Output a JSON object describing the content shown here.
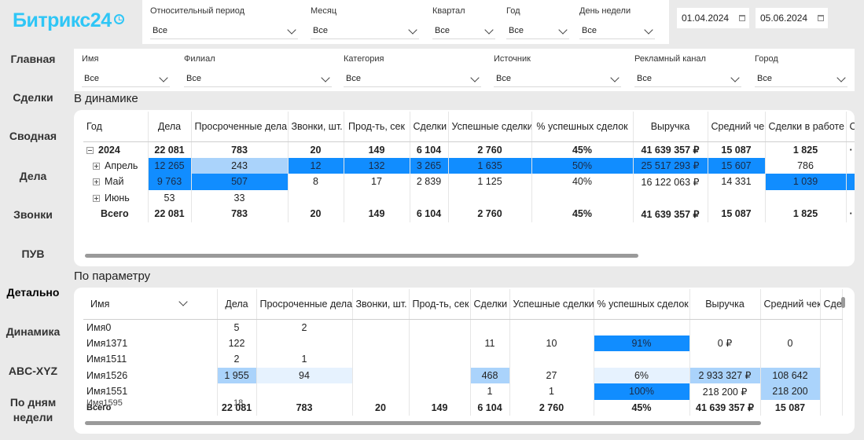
{
  "brand": "Битрикс24",
  "nav": [
    "Главная",
    "Сделки",
    "Сводная",
    "Дела",
    "Звонки",
    "ПУВ",
    "Детально",
    "Динамика",
    "ABC-XYZ",
    "По дням недели"
  ],
  "nav_active_index": 6,
  "top_filters": [
    {
      "label": "Относительный период",
      "value": "Все"
    },
    {
      "label": "Месяц",
      "value": "Все"
    },
    {
      "label": "Квартал",
      "value": "Все"
    },
    {
      "label": "Год",
      "value": "Все"
    },
    {
      "label": "День недели",
      "value": "Все"
    }
  ],
  "dates": {
    "from": "01.04.2024",
    "to": "05.06.2024"
  },
  "sub_filters": [
    {
      "label": "Имя",
      "value": "Все"
    },
    {
      "label": "Филиал",
      "value": "Все"
    },
    {
      "label": "Категория",
      "value": "Все"
    },
    {
      "label": "Источник",
      "value": "Все"
    },
    {
      "label": "Рекламный канал",
      "value": "Все"
    },
    {
      "label": "Город",
      "value": "Все"
    }
  ],
  "dynamics": {
    "title": "В динамике",
    "headers": [
      "Год",
      "Дела",
      "Просроченные дела",
      "Звонки, шт.",
      "Прод-ть, сек",
      "Сделки",
      "Успешные сделки",
      "% успешных сделок",
      "Выручка",
      "Средний чек",
      "Сделки в работе",
      "С"
    ],
    "rows": [
      {
        "label": "2024",
        "level": 0,
        "expanded": true,
        "bold": true,
        "cells": [
          "22 081",
          "783",
          "20",
          "149",
          "6 104",
          "2 760",
          "45%",
          "41 639 357 ₽",
          "15 087",
          "1 825",
          "·"
        ]
      },
      {
        "label": "Апрель",
        "level": 1,
        "expanded": false,
        "bold": false,
        "cells": [
          "12 265",
          "243",
          "12",
          "132",
          "3 265",
          "1 635",
          "50%",
          "25 517 293 ₽",
          "15 607",
          "786",
          ""
        ]
      },
      {
        "label": "Май",
        "level": 1,
        "expanded": false,
        "bold": false,
        "cells": [
          "9 763",
          "507",
          "8",
          "17",
          "2 839",
          "1 125",
          "40%",
          "16 122 063 ₽",
          "14 331",
          "1 039",
          ""
        ]
      },
      {
        "label": "Июнь",
        "level": 1,
        "expanded": false,
        "bold": false,
        "cells": [
          "53",
          "33",
          "",
          "",
          "",
          "",
          "",
          "",
          "",
          "",
          ""
        ]
      }
    ],
    "total": {
      "label": "Всего",
      "cells": [
        "22 081",
        "783",
        "20",
        "149",
        "6 104",
        "2 760",
        "45%",
        "41 639 357 ₽",
        "15 087",
        "1 825",
        "·"
      ]
    }
  },
  "params": {
    "title": "По параметру",
    "selector": "Имя",
    "headers": [
      "Дела",
      "Просроченные дела",
      "Звонки, шт.",
      "Прод-ть, сек",
      "Сделки",
      "Успешные сделки",
      "% успешных сделок",
      "Выручка",
      "Средний чек",
      "Сде"
    ],
    "rows": [
      {
        "label": "Имя0",
        "cells": [
          "5",
          "2",
          "",
          "",
          "",
          "",
          "",
          "",
          "",
          ""
        ]
      },
      {
        "label": "Имя1371",
        "cells": [
          "122",
          "",
          "",
          "",
          "11",
          "10",
          "91%",
          "0 ₽",
          "0",
          ""
        ]
      },
      {
        "label": "Имя1511",
        "cells": [
          "2",
          "1",
          "",
          "",
          "",
          "",
          "",
          "",
          "",
          ""
        ]
      },
      {
        "label": "Имя1526",
        "cells": [
          "1 955",
          "94",
          "",
          "",
          "468",
          "27",
          "6%",
          "2 933 327 ₽",
          "108 642",
          ""
        ]
      },
      {
        "label": "Имя1551",
        "cells": [
          "",
          "",
          "",
          "",
          "1",
          "1",
          "100%",
          "218 200 ₽",
          "218 200",
          ""
        ]
      },
      {
        "label": "Имя1595",
        "cells": [
          "",
          "",
          "",
          "",
          "",
          "",
          "",
          "",
          "",
          ""
        ]
      }
    ],
    "row_partial_value": "18",
    "total": {
      "label": "Всего",
      "cells": [
        "22 081",
        "783",
        "20",
        "149",
        "6 104",
        "2 760",
        "45%",
        "41 639 357 ₽",
        "15 087",
        ""
      ]
    }
  },
  "colors": {
    "brand": "#2fc6f6",
    "highlight_strong": "#118dff",
    "highlight_medium": "#aad3fb",
    "highlight_light": "#e6f2fe"
  }
}
